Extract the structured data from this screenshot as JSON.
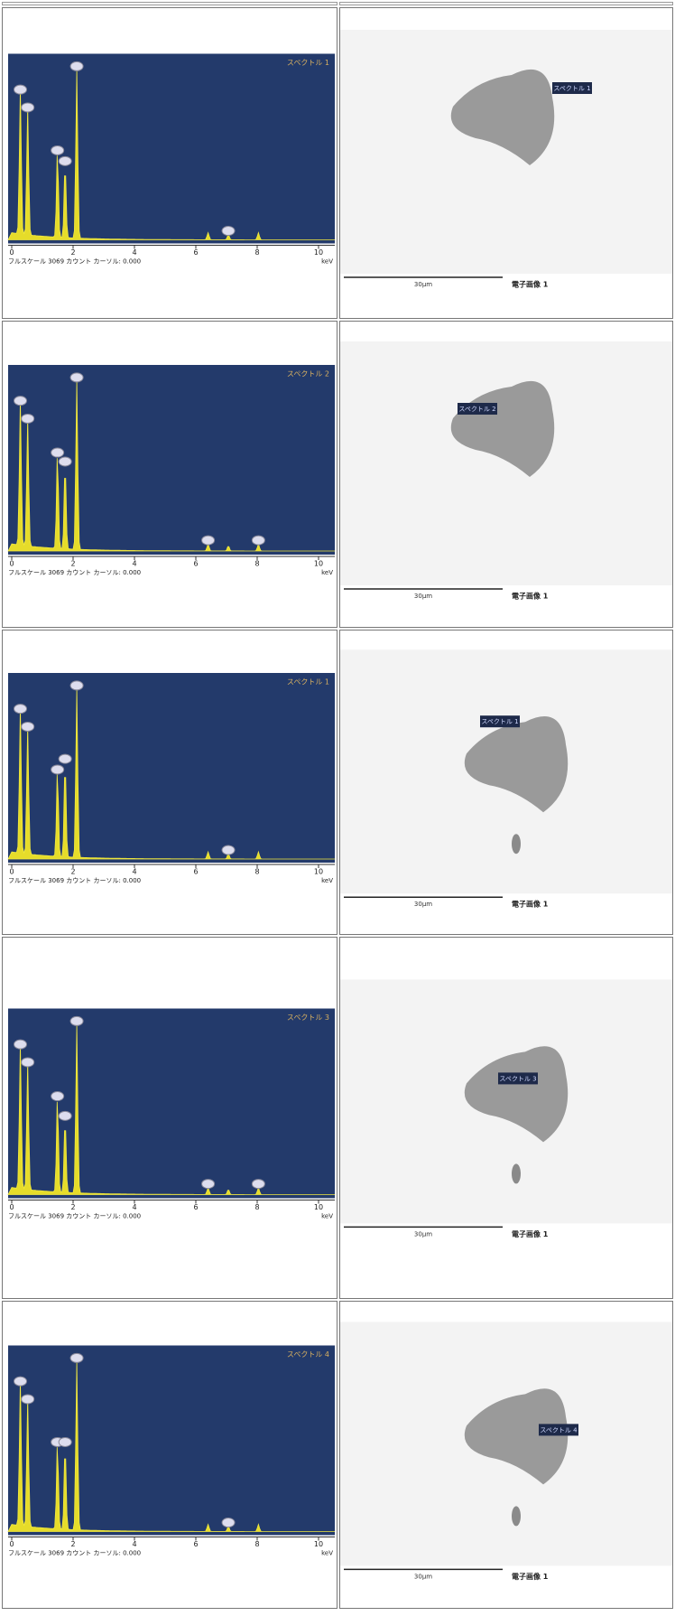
{
  "rows": [
    {
      "spectrum": {
        "title": "スペクトル 1",
        "footer": "フルスケール 3069 カウント カーソル: 0.000",
        "unit": "keV",
        "ticks": [
          0,
          2,
          4,
          6,
          8,
          10
        ]
      },
      "image": {
        "label": "スペクトル 1",
        "scale": "30μm",
        "caption": "電子画像 1"
      }
    },
    {
      "spectrum": {
        "title": "スペクトル 2",
        "footer": "フルスケール 3069 カウント カーソル: 0.000",
        "unit": "keV",
        "ticks": [
          0,
          2,
          4,
          6,
          8,
          10
        ]
      },
      "image": {
        "label": "スペクトル 2",
        "scale": "30μm",
        "caption": "電子画像 1"
      }
    },
    {
      "spectrum": {
        "title": "スペクトル 1",
        "footer": "フルスケール 3069 カウント カーソル: 0.000",
        "unit": "keV",
        "ticks": [
          0,
          2,
          4,
          6,
          8,
          10
        ]
      },
      "image": {
        "label": "スペクトル 1",
        "scale": "30μm",
        "caption": "電子画像 1"
      }
    },
    {
      "spectrum": {
        "title": "スペクトル 3",
        "footer": "フルスケール 3069 カウント カーソル: 0.000",
        "unit": "keV",
        "ticks": [
          0,
          2,
          4,
          6,
          8,
          10
        ]
      },
      "image": {
        "label": "スペクトル 3",
        "scale": "30μm",
        "caption": "電子画像 1"
      }
    },
    {
      "spectrum": {
        "title": "スペクトル 4",
        "footer": "フルスケール 3069 カウント カーソル: 0.000",
        "unit": "keV",
        "ticks": [
          0,
          2,
          4,
          6,
          8,
          10
        ]
      },
      "image": {
        "label": "スペクトル 4",
        "scale": "30μm",
        "caption": "電子画像 1"
      }
    }
  ]
}
